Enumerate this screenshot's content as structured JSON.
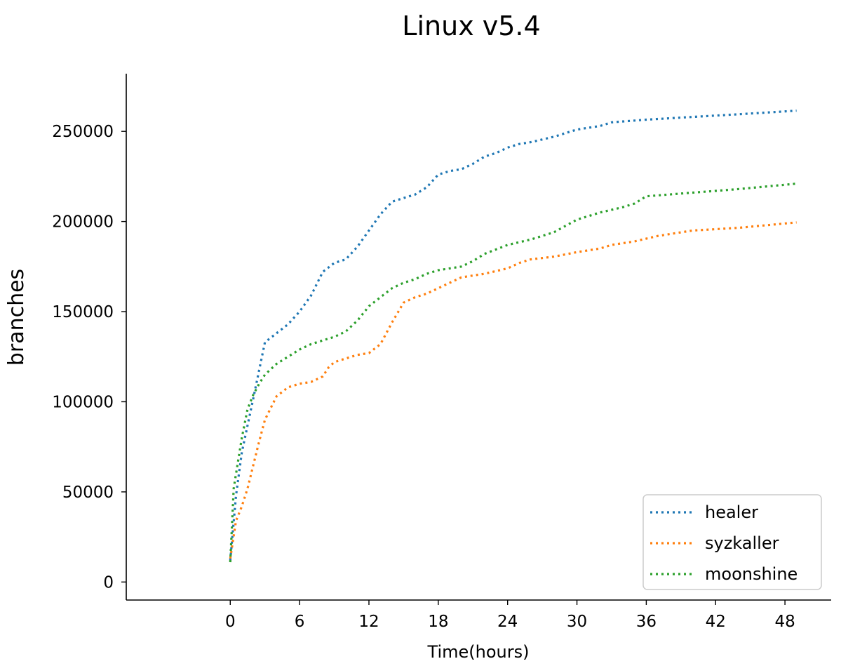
{
  "chart_data": {
    "type": "line",
    "title": "Linux v5.4",
    "xlabel": "Time(hours)",
    "ylabel": "branches",
    "xlim": [
      -9,
      52
    ],
    "ylim": [
      -10000,
      282000
    ],
    "xticks": [
      0,
      6,
      12,
      18,
      24,
      30,
      36,
      42,
      48
    ],
    "yticks": [
      0,
      50000,
      100000,
      150000,
      200000,
      250000
    ],
    "legend_position": "lower-right",
    "grid": false,
    "line_style": "dotted",
    "series": [
      {
        "name": "healer",
        "color": "#1f77b4",
        "x": [
          0,
          0.5,
          1,
          2,
          3,
          4,
          5,
          6,
          7,
          8,
          9,
          10,
          11,
          12,
          13,
          14,
          15,
          16,
          17,
          18,
          19,
          20,
          21,
          22,
          23,
          24,
          25,
          26,
          28,
          30,
          32,
          33,
          36,
          40,
          44,
          49
        ],
        "y": [
          12000,
          48000,
          72000,
          102000,
          133000,
          138000,
          143000,
          150000,
          159000,
          172000,
          177000,
          179000,
          186000,
          195000,
          204000,
          211000,
          213000,
          215000,
          219000,
          226000,
          228000,
          229000,
          232000,
          236000,
          238000,
          241000,
          243000,
          244000,
          247000,
          251000,
          253000,
          255000,
          256500,
          258000,
          259500,
          261500
        ]
      },
      {
        "name": "syzkaller",
        "color": "#ff7f0e",
        "x": [
          0,
          0.5,
          1,
          1.5,
          2,
          2.5,
          3,
          4,
          5,
          6,
          7,
          8,
          8.5,
          9,
          10,
          11,
          12,
          13,
          14,
          15,
          16,
          17,
          18,
          19,
          20,
          22,
          24,
          25,
          26,
          28,
          30,
          32,
          33,
          35,
          37,
          40,
          44,
          49
        ],
        "y": [
          13000,
          34000,
          42000,
          52000,
          65000,
          78000,
          90000,
          103000,
          108000,
          110000,
          111000,
          114000,
          119000,
          122000,
          124000,
          126000,
          127000,
          132000,
          144000,
          155000,
          158000,
          160000,
          163000,
          166000,
          169000,
          171000,
          174000,
          177000,
          179000,
          180500,
          183000,
          185000,
          187000,
          189000,
          192000,
          195000,
          196500,
          199500
        ]
      },
      {
        "name": "moonshine",
        "color": "#2ca02c",
        "x": [
          0,
          0.3,
          0.7,
          1,
          1.5,
          2,
          2.5,
          3,
          4,
          5,
          6,
          7,
          8,
          9,
          10,
          11,
          12,
          13,
          14,
          15,
          16,
          17,
          18,
          19,
          20,
          21,
          22,
          24,
          26,
          28,
          30,
          32,
          34,
          35,
          36,
          38,
          40,
          42,
          44,
          49
        ],
        "y": [
          11000,
          52000,
          68000,
          80000,
          96000,
          104000,
          110000,
          115000,
          121000,
          125000,
          129000,
          132000,
          134000,
          136000,
          139000,
          145000,
          153000,
          158000,
          163000,
          166000,
          168000,
          171000,
          173000,
          174000,
          175000,
          178000,
          182000,
          187000,
          190000,
          194000,
          201000,
          205000,
          208000,
          210000,
          214000,
          215000,
          216000,
          217000,
          218000,
          221000
        ]
      }
    ]
  }
}
